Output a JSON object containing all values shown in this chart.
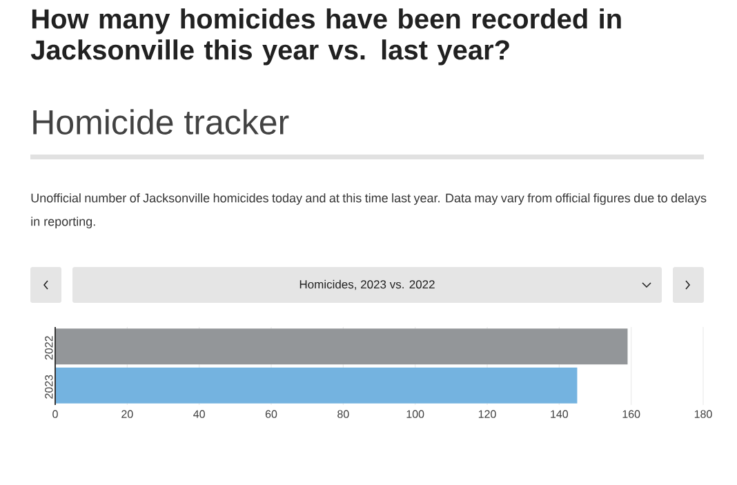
{
  "chart_data": {
    "type": "bar",
    "orientation": "horizontal",
    "title": "How many homicides have been recorded in Jacksonville this year vs. last year?",
    "subtitle": "Homicide tracker",
    "annotations": [
      "Unofficial number of Jacksonville homicides today and at this time last year. Data may vary from official figures due to delays in reporting.",
      "Homicides, 2023 vs. 2022"
    ],
    "categories": [
      "2022",
      "2023"
    ],
    "values": [
      159,
      145
    ],
    "colors": [
      "#939699",
      "#74b3e0"
    ],
    "xlim": [
      0,
      180
    ],
    "xticks": [
      0,
      20,
      40,
      60,
      80,
      100,
      120,
      140,
      160,
      180
    ],
    "grid": "x"
  }
}
